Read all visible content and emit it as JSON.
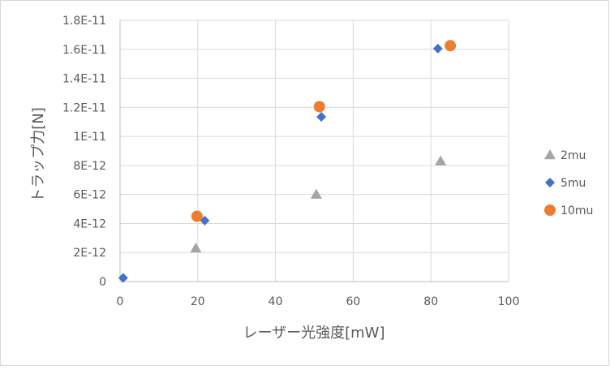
{
  "chart_data": {
    "type": "scatter",
    "title": "",
    "xlabel": "レーザー光強度[mW]",
    "ylabel": "トラップ力[N]",
    "xlim": [
      0,
      100
    ],
    "ylim": [
      0,
      1.8e-11
    ],
    "x_ticks": [
      "0",
      "20",
      "40",
      "60",
      "80",
      "100"
    ],
    "y_ticks": [
      "0",
      "2E-12",
      "4E-12",
      "6E-12",
      "8E-12",
      "1E-11",
      "1.2E-11",
      "1.4E-11",
      "1.6E-11",
      "1.8E-11"
    ],
    "grid": true,
    "legend_position": "right",
    "series": [
      {
        "name": "2mu",
        "marker": "triangle",
        "color": "#a5a5a5",
        "points": [
          [
            19.5,
            2.3e-12
          ],
          [
            50.5,
            6e-12
          ],
          [
            82.5,
            8.3e-12
          ]
        ]
      },
      {
        "name": "5mu",
        "marker": "diamond",
        "color": "#4472c4",
        "points": [
          [
            0.8,
            2.5e-13
          ],
          [
            21.8,
            4.2e-12
          ],
          [
            51.8,
            1.135e-11
          ],
          [
            81.8,
            1.605e-11
          ]
        ]
      },
      {
        "name": "10mu",
        "marker": "circle",
        "color": "#ed7d31",
        "points": [
          [
            19.8,
            4.5e-12
          ],
          [
            51.3,
            1.205e-11
          ],
          [
            85.0,
            1.625e-11
          ]
        ]
      }
    ]
  }
}
